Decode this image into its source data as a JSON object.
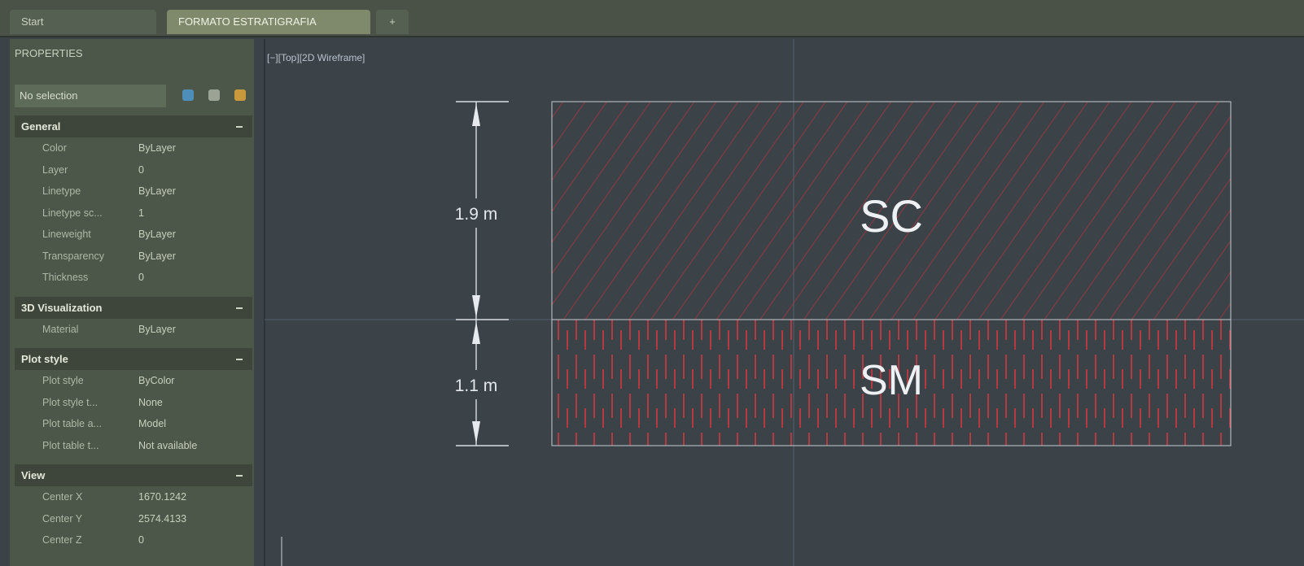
{
  "tabs": [
    "Start",
    "FORMATO ESTRATIGRAFIA",
    "+"
  ],
  "properties": {
    "title": "PROPERTIES",
    "selection": "No selection",
    "sections": [
      {
        "name": "General",
        "rows": [
          [
            "Color",
            "ByLayer"
          ],
          [
            "Layer",
            "0"
          ],
          [
            "Linetype",
            "ByLayer"
          ],
          [
            "Linetype sc...",
            "1"
          ],
          [
            "Lineweight",
            "ByLayer"
          ],
          [
            "Transparency",
            "ByLayer"
          ],
          [
            "Thickness",
            "0"
          ]
        ]
      },
      {
        "name": "3D Visualization",
        "rows": [
          [
            "Material",
            "ByLayer"
          ]
        ]
      },
      {
        "name": "Plot style",
        "rows": [
          [
            "Plot style",
            "ByColor"
          ],
          [
            "Plot style t...",
            "None"
          ],
          [
            "Plot table a...",
            "Model"
          ],
          [
            "Plot table t...",
            "Not available"
          ]
        ]
      },
      {
        "name": "View",
        "rows": [
          [
            "Center X",
            "1670.1242"
          ],
          [
            "Center Y",
            "2574.4133"
          ],
          [
            "Center Z",
            "0"
          ]
        ]
      }
    ]
  },
  "viewport": {
    "label": "[−][Top][2D Wireframe]",
    "dimensions": [
      "1.9 m",
      "1.1 m"
    ],
    "layers": [
      "SC",
      "SM"
    ]
  }
}
